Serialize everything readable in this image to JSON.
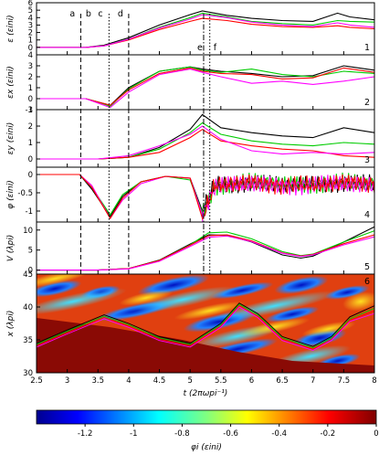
{
  "chart_data": {
    "type": "line",
    "xlabel": "t (2πωpi⁻¹)",
    "x_ticks": [
      "2.5",
      "3",
      "3.5",
      "4",
      "4.5",
      "5",
      "5.5",
      "6",
      "6.5",
      "7",
      "7.5",
      "8"
    ],
    "xlim": [
      2.5,
      8
    ],
    "series_colors": [
      "#000000",
      "#00cc00",
      "#ff0000",
      "#ff00ff"
    ],
    "phase_markers": [
      {
        "label": "a",
        "t": 3.22,
        "style": "dashed"
      },
      {
        "label": "b",
        "t": 3.48,
        "style": "none"
      },
      {
        "label": "c",
        "t": 3.68,
        "style": "dotted"
      },
      {
        "label": "d",
        "t": 4.0,
        "style": "dashed"
      },
      {
        "label": "e",
        "t": 5.22,
        "style": "dashdot"
      },
      {
        "label": "f",
        "t": 5.32,
        "style": "dotted"
      }
    ],
    "panels": [
      {
        "id": "1",
        "ylabel": "ε (εini)",
        "ylim": [
          -1,
          6
        ],
        "y_ticks": [
          "0",
          "1",
          "2",
          "3",
          "4",
          "5",
          "6"
        ],
        "series": [
          {
            "color": "#000000",
            "x": [
              2.5,
              3.3,
              3.6,
              4.0,
              4.5,
              5.0,
              5.2,
              5.6,
              6.0,
              6.5,
              7.0,
              7.4,
              7.6,
              8.0
            ],
            "y": [
              0,
              0,
              0.3,
              1.3,
              3.0,
              4.4,
              4.9,
              4.3,
              3.9,
              3.6,
              3.5,
              4.6,
              4.1,
              3.7
            ]
          },
          {
            "color": "#00cc00",
            "x": [
              2.5,
              3.3,
              3.6,
              4.0,
              4.5,
              5.0,
              5.2,
              5.6,
              6.0,
              6.5,
              7.0,
              7.4,
              7.6,
              8.0
            ],
            "y": [
              0,
              0,
              0.2,
              1.1,
              2.7,
              4.0,
              4.6,
              4.1,
              3.5,
              3.2,
              3.0,
              3.6,
              3.5,
              3.4
            ]
          },
          {
            "color": "#ff0000",
            "x": [
              2.5,
              3.3,
              3.6,
              4.0,
              4.5,
              5.0,
              5.2,
              5.6,
              6.0,
              6.5,
              7.0,
              7.4,
              7.6,
              8.0
            ],
            "y": [
              0,
              0,
              0.2,
              1.0,
              2.4,
              3.5,
              3.9,
              3.6,
              3.1,
              2.8,
              2.7,
              2.9,
              2.7,
              2.5
            ]
          },
          {
            "color": "#ff00ff",
            "x": [
              2.5,
              3.3,
              3.6,
              4.0,
              4.5,
              5.0,
              5.2,
              5.6,
              6.0,
              6.5,
              7.0,
              7.4,
              7.6,
              8.0
            ],
            "y": [
              0,
              0,
              0.2,
              1.1,
              2.6,
              3.8,
              4.4,
              4.0,
              3.4,
              3.0,
              2.8,
              3.3,
              3.0,
              2.7
            ]
          }
        ]
      },
      {
        "id": "2",
        "ylabel": "εx (εini)",
        "ylim": [
          -1,
          4
        ],
        "y_ticks": [
          "-1",
          "0",
          "1",
          "2",
          "3",
          "4"
        ],
        "series": [
          {
            "color": "#000000",
            "x": [
              2.5,
              3.3,
              3.5,
              3.7,
              4.0,
              4.5,
              5.0,
              5.2,
              5.5,
              6.0,
              6.5,
              7.0,
              7.5,
              8.0
            ],
            "y": [
              0,
              0,
              -0.3,
              -0.6,
              1.0,
              2.5,
              2.9,
              2.7,
              2.5,
              2.3,
              2.0,
              2.1,
              3.0,
              2.6
            ]
          },
          {
            "color": "#00cc00",
            "x": [
              2.5,
              3.3,
              3.5,
              3.7,
              4.0,
              4.5,
              5.0,
              5.2,
              5.5,
              6.0,
              6.5,
              7.0,
              7.5,
              8.0
            ],
            "y": [
              0,
              0,
              -0.3,
              -0.7,
              0.9,
              2.5,
              2.9,
              2.6,
              2.4,
              2.7,
              2.2,
              2.0,
              2.5,
              2.3
            ]
          },
          {
            "color": "#ff0000",
            "x": [
              2.5,
              3.3,
              3.5,
              3.7,
              4.0,
              4.5,
              5.0,
              5.2,
              5.5,
              6.0,
              6.5,
              7.0,
              7.5,
              8.0
            ],
            "y": [
              0,
              0,
              -0.3,
              -0.6,
              0.8,
              2.3,
              2.8,
              2.5,
              2.3,
              2.2,
              1.8,
              1.9,
              2.8,
              2.4
            ]
          },
          {
            "color": "#ff00ff",
            "x": [
              2.5,
              3.3,
              3.5,
              3.7,
              4.0,
              4.5,
              5.0,
              5.2,
              5.5,
              6.0,
              6.5,
              7.0,
              7.5,
              8.0
            ],
            "y": [
              0,
              0,
              -0.4,
              -0.8,
              0.6,
              2.2,
              2.7,
              2.4,
              2.0,
              1.4,
              1.6,
              1.3,
              1.6,
              2.0
            ]
          }
        ]
      },
      {
        "id": "3",
        "ylabel": "εy (εini)",
        "ylim": [
          -0.5,
          3
        ],
        "y_ticks": [
          "0",
          "1",
          "2",
          "3"
        ],
        "series": [
          {
            "color": "#000000",
            "x": [
              2.5,
              3.5,
              4.0,
              4.5,
              5.0,
              5.2,
              5.5,
              6.0,
              6.5,
              7.0,
              7.5,
              8.0
            ],
            "y": [
              0,
              0,
              0.1,
              0.7,
              1.8,
              2.7,
              1.9,
              1.6,
              1.4,
              1.3,
              1.9,
              1.6
            ]
          },
          {
            "color": "#00cc00",
            "x": [
              2.5,
              3.5,
              4.0,
              4.5,
              5.0,
              5.2,
              5.5,
              6.0,
              6.5,
              7.0,
              7.5,
              8.0
            ],
            "y": [
              0,
              0,
              0.1,
              0.6,
              1.6,
              2.2,
              1.5,
              1.1,
              0.9,
              0.8,
              1.0,
              0.9
            ]
          },
          {
            "color": "#ff0000",
            "x": [
              2.5,
              3.5,
              4.0,
              4.5,
              5.0,
              5.2,
              5.5,
              6.0,
              6.5,
              7.0,
              7.5,
              8.0
            ],
            "y": [
              0,
              0,
              0.1,
              0.4,
              1.3,
              1.8,
              1.1,
              0.8,
              0.6,
              0.5,
              0.2,
              0.1
            ]
          },
          {
            "color": "#ff00ff",
            "x": [
              2.5,
              3.5,
              4.0,
              4.5,
              5.0,
              5.2,
              5.5,
              6.0,
              6.5,
              7.0,
              7.5,
              8.0
            ],
            "y": [
              0,
              0,
              0.2,
              0.8,
              1.5,
              2.0,
              1.2,
              0.5,
              0.3,
              0.4,
              0.3,
              0.4
            ]
          }
        ]
      },
      {
        "id": "4",
        "ylabel": "φ (εini)",
        "ylim": [
          -1.3,
          0.2
        ],
        "y_ticks": [
          "-1",
          "-0.5",
          "0"
        ],
        "series": [
          {
            "color": "#000000",
            "x": [
              2.5,
              3.2,
              3.4,
              3.7,
              3.9,
              4.2,
              4.6,
              5.0,
              5.2,
              5.4,
              6.0,
              6.5,
              7.0,
              7.5,
              8.0
            ],
            "y": [
              0,
              0,
              -0.4,
              -1.15,
              -0.6,
              -0.2,
              -0.05,
              -0.1,
              -1.0,
              -0.3,
              -0.2,
              -0.3,
              -0.3,
              -0.2,
              -0.25
            ]
          },
          {
            "color": "#00cc00",
            "x": [
              2.5,
              3.2,
              3.4,
              3.7,
              3.9,
              4.2,
              4.6,
              5.0,
              5.2,
              5.4,
              6.0,
              6.5,
              7.0,
              7.5,
              8.0
            ],
            "y": [
              0,
              0,
              -0.35,
              -1.1,
              -0.55,
              -0.2,
              -0.05,
              -0.15,
              -1.05,
              -0.3,
              -0.2,
              -0.3,
              -0.25,
              -0.2,
              -0.3
            ]
          },
          {
            "color": "#ff00ff",
            "x": [
              2.5,
              3.2,
              3.4,
              3.7,
              3.9,
              4.2,
              4.6,
              5.0,
              5.2,
              5.4,
              6.0,
              6.5,
              7.0,
              7.5,
              8.0
            ],
            "y": [
              0,
              0,
              -0.3,
              -1.2,
              -0.7,
              -0.25,
              -0.05,
              -0.1,
              -1.1,
              -0.35,
              -0.25,
              -0.3,
              -0.3,
              -0.25,
              -0.3
            ]
          },
          {
            "color": "#ff0000",
            "x": [
              2.5,
              3.2,
              3.4,
              3.7,
              3.9,
              4.2,
              4.6,
              5.0,
              5.2,
              5.4,
              6.0,
              6.5,
              7.0,
              7.5,
              8.0
            ],
            "y": [
              0,
              0,
              -0.35,
              -1.2,
              -0.65,
              -0.2,
              -0.05,
              -0.1,
              -1.2,
              -0.3,
              -0.2,
              -0.3,
              -0.3,
              -0.2,
              -0.25
            ]
          }
        ]
      },
      {
        "id": "5",
        "ylabel": "V (λpi)",
        "ylim": [
          -1,
          12
        ],
        "y_ticks": [
          "0",
          "5",
          "10"
        ],
        "series": [
          {
            "color": "#000000",
            "x": [
              2.5,
              3.5,
              4.0,
              4.5,
              5.0,
              5.3,
              5.6,
              6.0,
              6.5,
              6.8,
              7.0,
              7.5,
              8.0
            ],
            "y": [
              0,
              0,
              0.4,
              2.5,
              6.5,
              8.8,
              8.7,
              7.0,
              3.8,
              3.0,
              3.5,
              7.0,
              10.8
            ]
          },
          {
            "color": "#00cc00",
            "x": [
              2.5,
              3.5,
              4.0,
              4.5,
              5.0,
              5.3,
              5.6,
              6.0,
              6.5,
              6.8,
              7.0,
              7.5,
              8.0
            ],
            "y": [
              0,
              0,
              0.4,
              2.4,
              6.3,
              9.3,
              9.5,
              7.8,
              4.6,
              3.6,
              4.0,
              7.0,
              9.8
            ]
          },
          {
            "color": "#ff0000",
            "x": [
              2.5,
              3.5,
              4.0,
              4.5,
              5.0,
              5.3,
              5.6,
              6.0,
              6.5,
              6.8,
              7.0,
              7.5,
              8.0
            ],
            "y": [
              0,
              0,
              0.4,
              2.4,
              6.2,
              8.6,
              8.8,
              7.3,
              4.3,
              3.5,
              3.9,
              6.6,
              8.8
            ]
          },
          {
            "color": "#ff00ff",
            "x": [
              2.5,
              3.5,
              4.0,
              4.5,
              5.0,
              5.3,
              5.6,
              6.0,
              6.5,
              6.8,
              7.0,
              7.5,
              8.0
            ],
            "y": [
              0,
              0,
              0.3,
              2.2,
              5.9,
              8.2,
              8.5,
              7.1,
              4.2,
              3.4,
              3.8,
              6.3,
              8.3
            ]
          }
        ]
      },
      {
        "id": "6",
        "type": "heatmap",
        "ylabel": "x (λpi)",
        "ylim": [
          30,
          45
        ],
        "y_ticks": [
          "30",
          "35",
          "40",
          "45"
        ],
        "colorbar": {
          "label": "φi (εini)",
          "range": [
            -1.4,
            0
          ],
          "ticks": [
            "-1.2",
            "-1",
            "-0.8",
            "-0.6",
            "-0.4",
            "-0.2",
            "0"
          ]
        },
        "trajectories": [
          {
            "color": "#000000",
            "x": [
              2.5,
              3.0,
              3.6,
              4.0,
              4.5,
              5.0,
              5.5,
              5.8,
              6.1,
              6.5,
              7.0,
              7.3,
              7.6,
              8.0
            ],
            "y": [
              34.5,
              36.5,
              38.8,
              37.5,
              35.5,
              34.5,
              37.5,
              40.6,
              39.0,
              35.5,
              34.0,
              35.5,
              38.5,
              40.2
            ]
          },
          {
            "color": "#00cc00",
            "x": [
              2.5,
              3.0,
              3.6,
              4.0,
              4.5,
              5.0,
              5.5,
              5.8,
              6.1,
              6.5,
              7.0,
              7.3,
              7.6,
              8.0
            ],
            "y": [
              34.3,
              36.3,
              38.6,
              37.3,
              35.3,
              34.3,
              37.3,
              40.4,
              38.8,
              35.3,
              33.8,
              35.3,
              38.2,
              39.8
            ]
          },
          {
            "color": "#ff0000",
            "x": [
              2.5,
              3.0,
              3.6,
              4.0,
              4.5,
              5.0,
              5.5,
              5.8,
              6.1,
              6.5,
              7.0,
              7.3,
              7.6,
              8.0
            ],
            "y": [
              34.1,
              36.1,
              38.4,
              37.1,
              35.1,
              34.1,
              37.1,
              40.2,
              38.6,
              35.1,
              33.6,
              35.1,
              38.0,
              39.4
            ]
          },
          {
            "color": "#ff00ff",
            "x": [
              2.5,
              3.0,
              3.6,
              4.0,
              4.5,
              5.0,
              5.5,
              5.8,
              6.1,
              6.5,
              7.0,
              7.3,
              7.6,
              8.0
            ],
            "y": [
              33.9,
              35.9,
              38.2,
              36.9,
              34.9,
              33.9,
              36.9,
              40.0,
              38.4,
              34.9,
              33.4,
              34.9,
              37.8,
              39.0
            ]
          }
        ]
      }
    ]
  }
}
